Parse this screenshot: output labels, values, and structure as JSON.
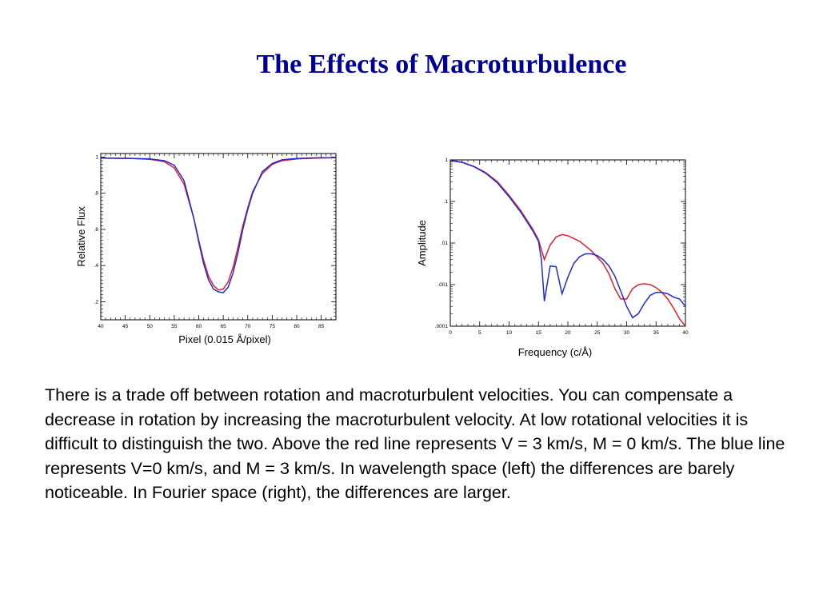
{
  "slide": {
    "title": "The Effects of Macroturbulence",
    "caption": "There  is a trade off between rotation and macroturbulent velocities. You can compensate a decrease in rotation by increasing the macroturbulent velocity. At low rotational velocities it is difficult to distinguish the two. Above the red line represents V = 3 km/s, M = 0 km/s. The blue line represents V=0 km/s, and M = 3 km/s. In wavelength space (left) the differences are barely noticeable. In Fourier space (right), the differences are larger."
  },
  "colors": {
    "red_line": "#e0202a",
    "blue_line": "#1f2bd6",
    "title": "#000099"
  },
  "chart_data": [
    {
      "type": "line",
      "xlabel": "Pixel (0.015 Å/pixel)",
      "ylabel": "Relative Flux",
      "xlim": [
        40,
        88
      ],
      "ylim": [
        0.1,
        1.02
      ],
      "xticks": [
        40,
        45,
        50,
        55,
        60,
        65,
        70,
        75,
        80,
        85
      ],
      "xtick_labels": [
        "40",
        "45",
        "50",
        "55",
        "60",
        "65",
        "70",
        "75",
        "80",
        "85"
      ],
      "yticks": [
        1.0,
        0.8,
        0.6,
        0.4,
        0.2
      ],
      "ytick_labels": [
        "1",
        ".8",
        ".6",
        ".4",
        ".2"
      ],
      "grid": false,
      "legend": "none",
      "series": [
        {
          "color": "red",
          "x": [
            40,
            46,
            50,
            53,
            55,
            57,
            59,
            60,
            61,
            62,
            63,
            64,
            65,
            66,
            67,
            68,
            69,
            70,
            71,
            73,
            75,
            77,
            80,
            84,
            88
          ],
          "y": [
            0.995,
            0.993,
            0.988,
            0.975,
            0.94,
            0.85,
            0.66,
            0.54,
            0.43,
            0.34,
            0.29,
            0.265,
            0.27,
            0.31,
            0.39,
            0.5,
            0.62,
            0.72,
            0.81,
            0.91,
            0.96,
            0.98,
            0.99,
            0.995,
            0.997
          ]
        },
        {
          "color": "blue",
          "x": [
            40,
            46,
            50,
            53,
            55,
            57,
            59,
            60,
            61,
            62,
            63,
            64,
            65,
            66,
            67,
            68,
            69,
            70,
            71,
            73,
            75,
            77,
            80,
            84,
            88
          ],
          "y": [
            0.995,
            0.993,
            0.99,
            0.98,
            0.955,
            0.87,
            0.66,
            0.53,
            0.41,
            0.32,
            0.27,
            0.255,
            0.25,
            0.28,
            0.36,
            0.47,
            0.6,
            0.71,
            0.8,
            0.92,
            0.965,
            0.985,
            0.992,
            0.996,
            0.997
          ]
        }
      ]
    },
    {
      "type": "line",
      "xlabel": "Frequency (c/Å)",
      "ylabel": "Amplitude",
      "xlim": [
        0,
        40
      ],
      "ylim": [
        0.0001,
        1
      ],
      "yscale": "log",
      "xticks": [
        0,
        5,
        10,
        15,
        20,
        25,
        30,
        35,
        40
      ],
      "xtick_labels": [
        "0",
        "5",
        "10",
        "15",
        "20",
        "25",
        "30",
        "35",
        "40"
      ],
      "yticks": [
        1,
        0.1,
        0.01,
        0.001,
        0.0001
      ],
      "ytick_labels": [
        "1",
        ".1",
        ".01",
        ".001",
        ".0001"
      ],
      "grid": false,
      "legend": "none",
      "series": [
        {
          "color": "red",
          "x": [
            0,
            2,
            4,
            6,
            8,
            10,
            12,
            14,
            15,
            16,
            17,
            18,
            19,
            20,
            22,
            24,
            26,
            27,
            28,
            29,
            30,
            31,
            32,
            33,
            34,
            35,
            36,
            37,
            38,
            39,
            40
          ],
          "y": [
            0.97,
            0.88,
            0.7,
            0.5,
            0.3,
            0.14,
            0.06,
            0.022,
            0.012,
            0.004,
            0.009,
            0.014,
            0.016,
            0.015,
            0.011,
            0.0065,
            0.0032,
            0.0018,
            0.0008,
            0.00045,
            0.00045,
            0.0008,
            0.001,
            0.00105,
            0.001,
            0.00085,
            0.00065,
            0.00045,
            0.00027,
            0.00015,
            0.0001
          ]
        },
        {
          "color": "blue",
          "x": [
            0,
            2,
            4,
            6,
            8,
            10,
            12,
            14,
            15,
            15.5,
            16,
            17,
            18,
            19,
            20,
            21,
            22,
            23,
            24,
            25,
            26,
            27,
            28,
            29,
            30,
            31,
            32,
            33,
            34,
            35,
            36,
            37,
            38,
            39,
            40
          ],
          "y": [
            0.97,
            0.87,
            0.69,
            0.48,
            0.28,
            0.13,
            0.055,
            0.02,
            0.011,
            0.004,
            0.0004,
            0.0028,
            0.0027,
            0.0006,
            0.0015,
            0.0032,
            0.0047,
            0.0055,
            0.0055,
            0.005,
            0.004,
            0.0028,
            0.0016,
            0.0007,
            0.0003,
            0.00016,
            0.0002,
            0.00035,
            0.00055,
            0.00065,
            0.00065,
            0.0006,
            0.0005,
            0.00045,
            0.0003
          ]
        }
      ]
    }
  ]
}
